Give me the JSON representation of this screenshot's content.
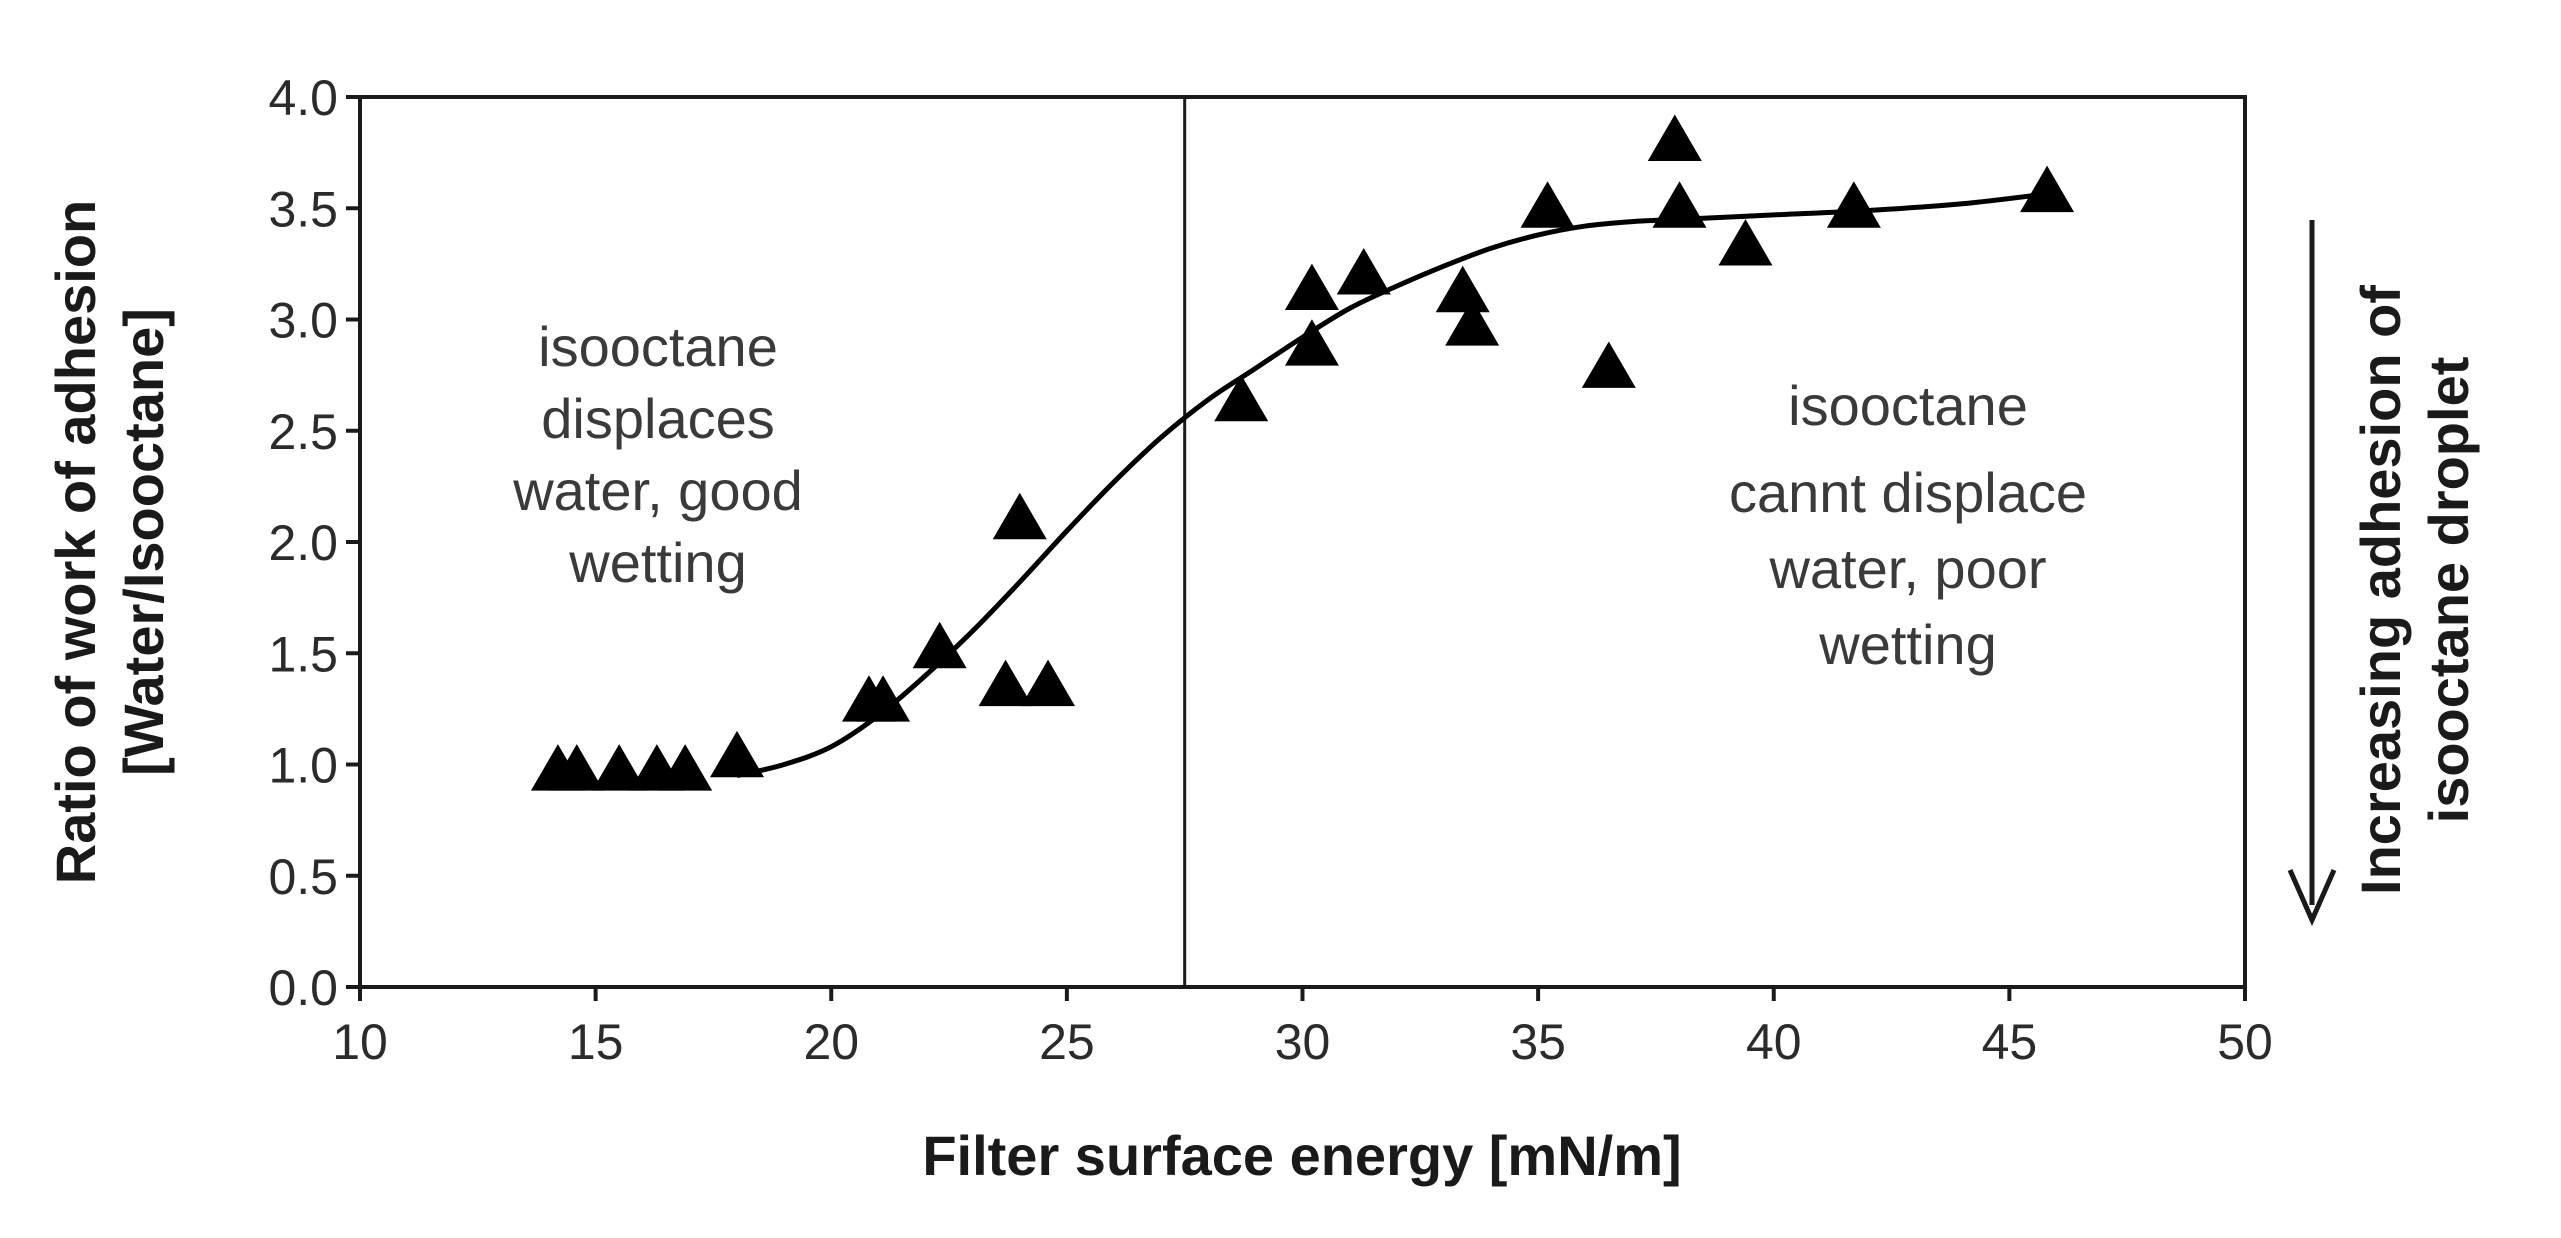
{
  "chart_data": {
    "type": "scatter",
    "xlabel": "Filter surface energy [mN/m]",
    "ylabel_line1": "Ratio of work of adhesion",
    "ylabel_line2": "[Water/Isooctane]",
    "xlim": [
      10,
      50
    ],
    "ylim": [
      0,
      4
    ],
    "xticks": [
      10,
      15,
      20,
      25,
      30,
      35,
      40,
      45,
      50
    ],
    "yticks": [
      "0.0",
      "0.5",
      "1.0",
      "1.5",
      "2.0",
      "2.5",
      "3.0",
      "3.5",
      "4.0"
    ],
    "grid": false,
    "vertical_line_x": 27.5,
    "series": [
      {
        "name": "measured",
        "marker": "triangle",
        "points": [
          [
            14.2,
            0.97
          ],
          [
            14.6,
            0.97
          ],
          [
            15.5,
            0.97
          ],
          [
            16.3,
            0.97
          ],
          [
            16.9,
            0.97
          ],
          [
            18.0,
            1.03
          ],
          [
            20.8,
            1.28
          ],
          [
            21.1,
            1.28
          ],
          [
            22.3,
            1.52
          ],
          [
            23.7,
            1.35
          ],
          [
            24.6,
            1.35
          ],
          [
            24.0,
            2.1
          ],
          [
            28.7,
            2.63
          ],
          [
            30.2,
            2.88
          ],
          [
            30.2,
            3.13
          ],
          [
            31.3,
            3.2
          ],
          [
            33.4,
            3.12
          ],
          [
            33.6,
            2.97
          ],
          [
            35.2,
            3.5
          ],
          [
            36.5,
            2.78
          ],
          [
            37.9,
            3.8
          ],
          [
            38.0,
            3.5
          ],
          [
            39.4,
            3.33
          ],
          [
            41.7,
            3.5
          ],
          [
            45.8,
            3.57
          ]
        ]
      },
      {
        "name": "fit",
        "type": "line",
        "points": [
          [
            18.0,
            0.95
          ],
          [
            19.0,
            1.0
          ],
          [
            20.0,
            1.08
          ],
          [
            21.0,
            1.22
          ],
          [
            22.0,
            1.4
          ],
          [
            23.0,
            1.6
          ],
          [
            24.0,
            1.82
          ],
          [
            25.0,
            2.05
          ],
          [
            26.0,
            2.27
          ],
          [
            27.0,
            2.47
          ],
          [
            28.0,
            2.64
          ],
          [
            29.0,
            2.78
          ],
          [
            30.0,
            2.92
          ],
          [
            31.0,
            3.05
          ],
          [
            32.0,
            3.15
          ],
          [
            33.0,
            3.24
          ],
          [
            34.0,
            3.32
          ],
          [
            35.0,
            3.38
          ],
          [
            36.0,
            3.42
          ],
          [
            37.0,
            3.44
          ],
          [
            38.0,
            3.45
          ],
          [
            40.0,
            3.47
          ],
          [
            42.0,
            3.49
          ],
          [
            44.0,
            3.52
          ],
          [
            46.0,
            3.57
          ]
        ]
      }
    ],
    "annotations": {
      "left": [
        "isooctane",
        "displaces",
        "water, good",
        "wetting"
      ],
      "right": [
        "isooctane",
        "cannt displace",
        "water, poor",
        "wetting"
      ],
      "arrow_label_line1": "Increasing adhesion of",
      "arrow_label_line2": "isooctane droplet"
    },
    "colors": {
      "axis": "#1a1a1a",
      "marker": "#000000",
      "text": "#2b2b2b"
    }
  }
}
